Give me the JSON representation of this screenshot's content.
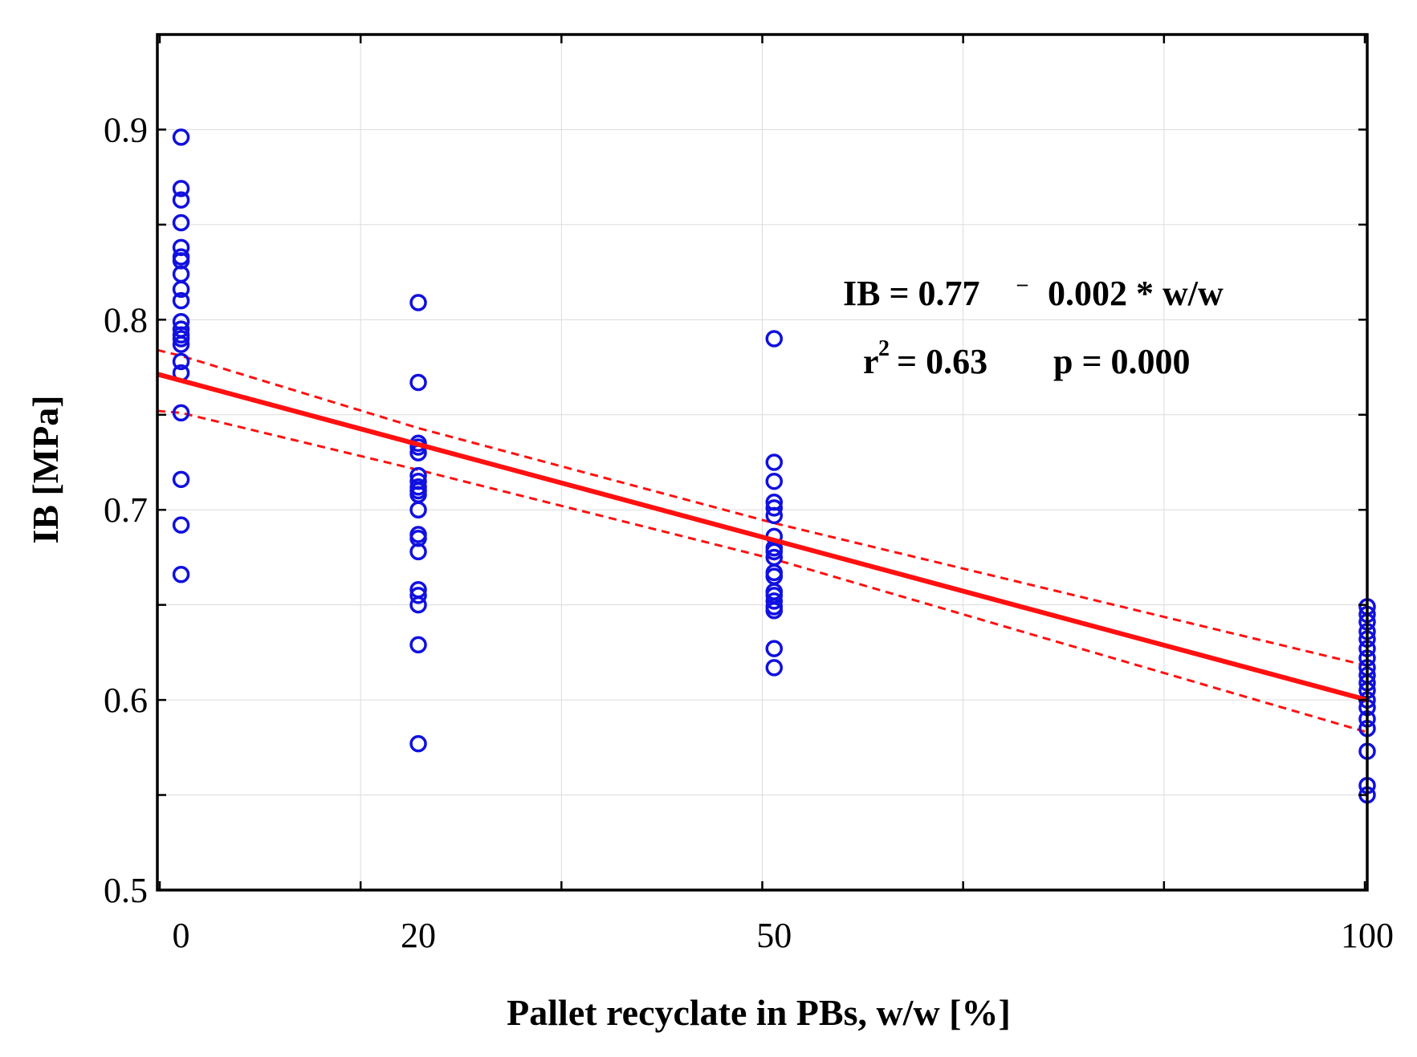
{
  "chart_data": {
    "type": "scatter",
    "title": "",
    "xlabel": "Pallet recyclate in PBs, w/w  [%]",
    "ylabel": "IB  [MPa]",
    "xlim": [
      -2,
      100
    ],
    "ylim": [
      0.5,
      0.95
    ],
    "x_ticks": [
      {
        "pos": 0,
        "label": "0"
      },
      {
        "pos": 20,
        "label": "20"
      },
      {
        "pos": 50,
        "label": "50"
      },
      {
        "pos": 100,
        "label": "100"
      }
    ],
    "y_ticks": [
      {
        "pos": 0.5,
        "label": "0.5"
      },
      {
        "pos": 0.6,
        "label": "0.6"
      },
      {
        "pos": 0.7,
        "label": "0.7"
      },
      {
        "pos": 0.8,
        "label": "0.8"
      },
      {
        "pos": 0.9,
        "label": "0.9"
      }
    ],
    "grid": true,
    "colors": {
      "points": "#1010e0",
      "fit": "#ff1010",
      "frame": "#000000",
      "grid": "#dcdcdc"
    },
    "series": [
      {
        "name": "0",
        "x": 0,
        "values": [
          0.896,
          0.869,
          0.863,
          0.851,
          0.838,
          0.833,
          0.831,
          0.824,
          0.816,
          0.81,
          0.799,
          0.795,
          0.792,
          0.79,
          0.787,
          0.778,
          0.772,
          0.751,
          0.716,
          0.692,
          0.666
        ]
      },
      {
        "name": "20",
        "x": 20,
        "values": [
          0.809,
          0.767,
          0.735,
          0.733,
          0.73,
          0.718,
          0.715,
          0.712,
          0.71,
          0.708,
          0.7,
          0.687,
          0.685,
          0.678,
          0.658,
          0.655,
          0.65,
          0.629,
          0.577
        ]
      },
      {
        "name": "50",
        "x": 50,
        "values": [
          0.79,
          0.725,
          0.715,
          0.704,
          0.701,
          0.697,
          0.686,
          0.68,
          0.678,
          0.675,
          0.667,
          0.665,
          0.657,
          0.655,
          0.652,
          0.649,
          0.647,
          0.627,
          0.617
        ]
      },
      {
        "name": "100",
        "x": 100,
        "values": [
          0.649,
          0.645,
          0.641,
          0.636,
          0.632,
          0.627,
          0.622,
          0.617,
          0.613,
          0.609,
          0.605,
          0.6,
          0.596,
          0.59,
          0.585,
          0.573,
          0.555,
          0.55
        ]
      }
    ],
    "regression": {
      "intercept": 0.768,
      "slope": -0.00168
    },
    "confidence_band": {
      "x": [
        -2,
        0,
        20,
        50,
        100
      ],
      "upper": [
        0.784,
        0.781,
        0.743,
        0.693,
        0.618
      ],
      "lower": [
        0.752,
        0.751,
        0.721,
        0.674,
        0.583
      ]
    },
    "annotations": {
      "equation": {
        "lhs": "IB = 0.77",
        "minus": "–",
        "rhs": "0.002 * w/w"
      },
      "stats": {
        "r": "r",
        "r_exp": "2",
        "r_value": "= 0.63",
        "p_value": "p = 0.000"
      }
    }
  }
}
